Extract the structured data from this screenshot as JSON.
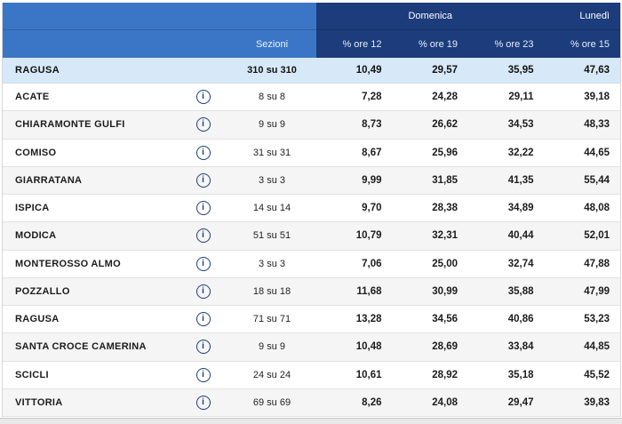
{
  "table": {
    "header": {
      "day_group_1": "Domenica",
      "day_group_2": "Lunedì",
      "sezioni_label": "Sezioni",
      "pct_cols": [
        "% ore 12",
        "% ore 19",
        "% ore 23",
        "% ore 15"
      ]
    },
    "totals": {
      "name": "RAGUSA",
      "sezioni": "310 su 310",
      "values": [
        "10,49",
        "29,57",
        "35,95",
        "47,63"
      ]
    },
    "rows": [
      {
        "name": "ACATE",
        "sezioni": "8 su 8",
        "values": [
          "7,28",
          "24,28",
          "29,11",
          "39,18"
        ]
      },
      {
        "name": "CHIARAMONTE GULFI",
        "sezioni": "9 su 9",
        "values": [
          "8,73",
          "26,62",
          "34,53",
          "48,33"
        ]
      },
      {
        "name": "COMISO",
        "sezioni": "31 su 31",
        "values": [
          "8,67",
          "25,96",
          "32,22",
          "44,65"
        ]
      },
      {
        "name": "GIARRATANA",
        "sezioni": "3 su 3",
        "values": [
          "9,99",
          "31,85",
          "41,35",
          "55,44"
        ]
      },
      {
        "name": "ISPICA",
        "sezioni": "14 su 14",
        "values": [
          "9,70",
          "28,38",
          "34,89",
          "48,08"
        ]
      },
      {
        "name": "MODICA",
        "sezioni": "51 su 51",
        "values": [
          "10,79",
          "32,31",
          "40,44",
          "52,01"
        ]
      },
      {
        "name": "MONTEROSSO ALMO",
        "sezioni": "3 su 3",
        "values": [
          "7,06",
          "25,00",
          "32,74",
          "47,88"
        ]
      },
      {
        "name": "POZZALLO",
        "sezioni": "18 su 18",
        "values": [
          "11,68",
          "30,99",
          "35,88",
          "47,99"
        ]
      },
      {
        "name": "RAGUSA",
        "sezioni": "71 su 71",
        "values": [
          "13,28",
          "34,56",
          "40,86",
          "53,23"
        ]
      },
      {
        "name": "SANTA CROCE CAMERINA",
        "sezioni": "9 su 9",
        "values": [
          "10,48",
          "28,69",
          "33,84",
          "44,85"
        ]
      },
      {
        "name": "SCICLI",
        "sezioni": "24 su 24",
        "values": [
          "10,61",
          "28,92",
          "35,18",
          "45,52"
        ]
      },
      {
        "name": "VITTORIA",
        "sezioni": "69 su 69",
        "values": [
          "8,26",
          "24,08",
          "29,47",
          "39,83"
        ]
      }
    ]
  },
  "icons": {
    "info": "i"
  },
  "colors": {
    "header_medium_blue": "#3b76c6",
    "header_dark_blue": "#1c3c7b",
    "totals_row_blue": "#d7e9f8",
    "zebra_gray": "#f5f5f5",
    "footer_gray": "#e9e9e9"
  }
}
